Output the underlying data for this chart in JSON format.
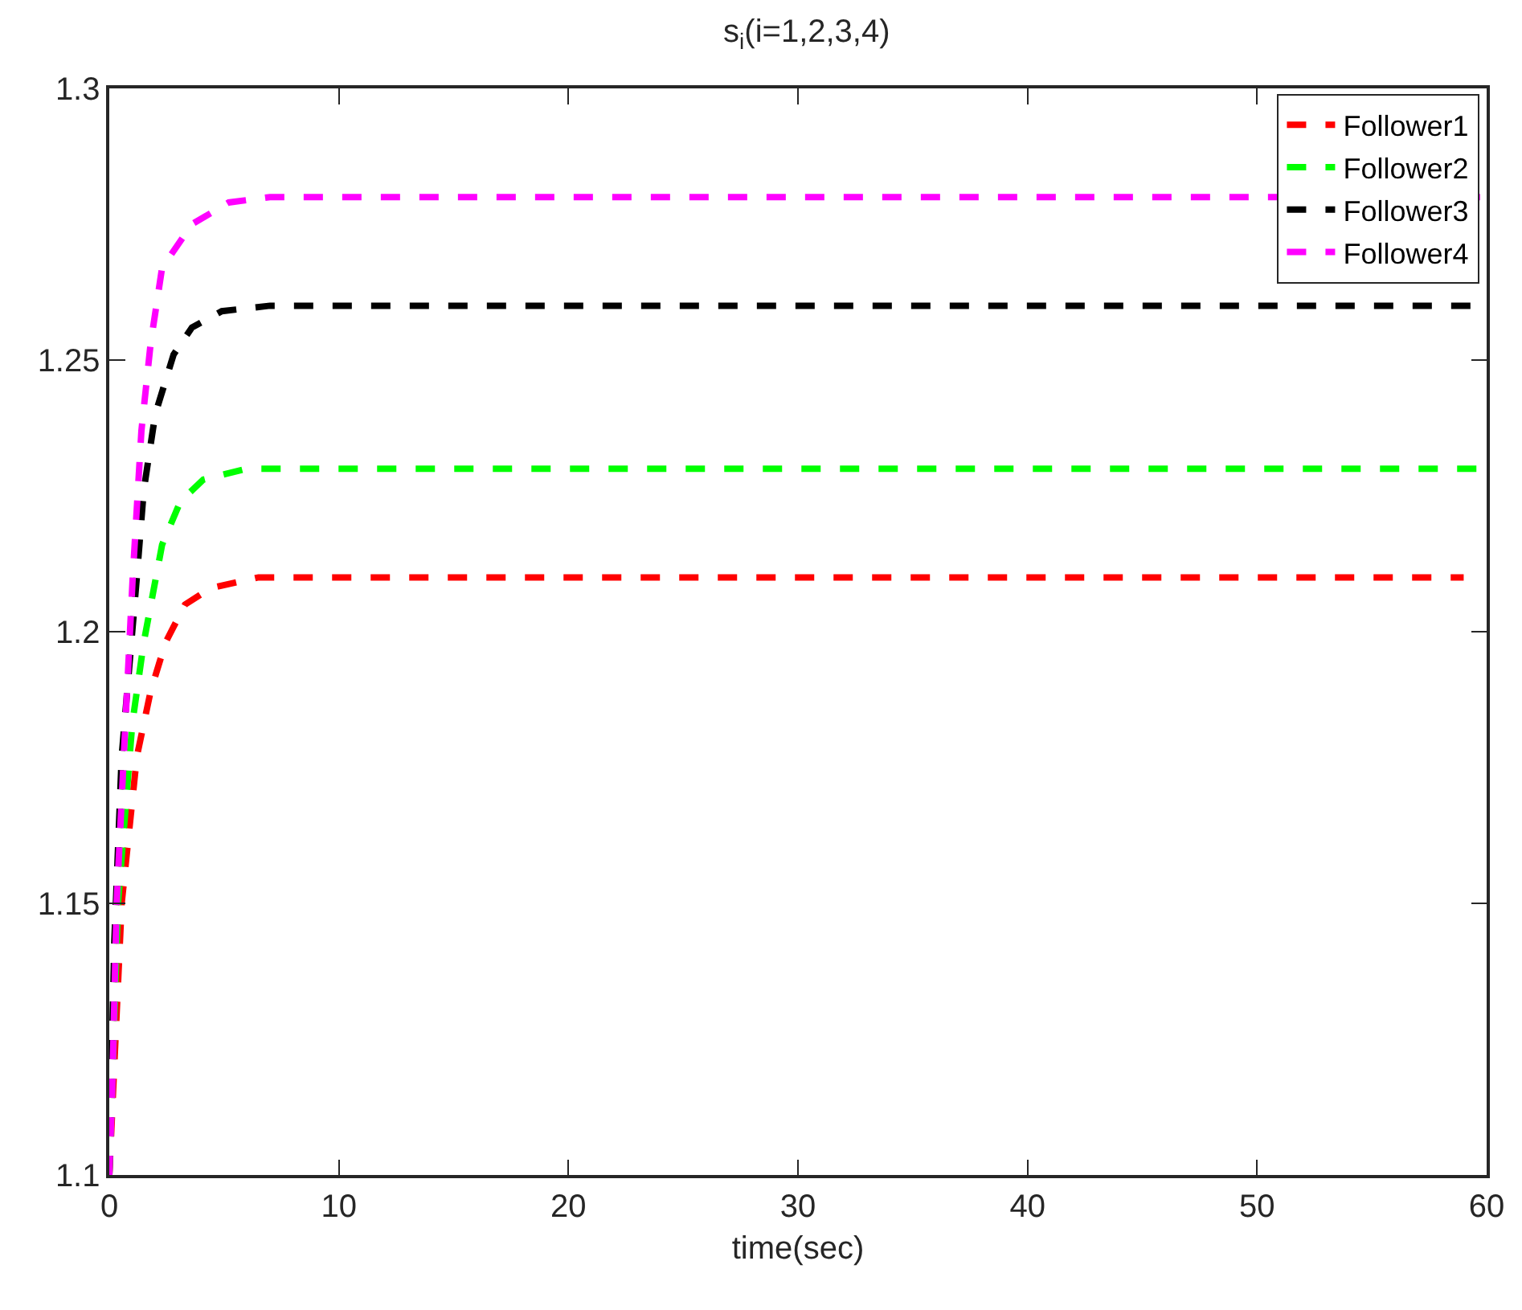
{
  "chart_data": {
    "type": "line",
    "title": "s$_{i}$(i=1,2,3,4)",
    "xlabel": "time(sec)",
    "xlim": [
      0,
      60
    ],
    "xticks": [
      0,
      10,
      20,
      30,
      40,
      50,
      60
    ],
    "ylim": [
      1.1,
      1.3
    ],
    "yticks": [
      1.1,
      1.15,
      1.2,
      1.25,
      1.3
    ],
    "grid": false,
    "legend": "top right",
    "line_style": "dashed",
    "marker": "none",
    "series": [
      {
        "name": "Follower1",
        "color": "#ff0000",
        "x": [
          0,
          0.54,
          1.2,
          1.8,
          2.45,
          3.3,
          4.4,
          6.5,
          59
        ],
        "values": [
          1.1,
          1.15,
          1.177,
          1.189,
          1.198,
          1.205,
          1.208,
          1.21,
          1.21
        ]
      },
      {
        "name": "Follower2",
        "color": "#00ff00",
        "x": [
          0,
          0.38,
          1.0,
          1.5,
          2.3,
          3.1,
          4.1,
          6,
          60
        ],
        "values": [
          1.1,
          1.15,
          1.183,
          1.198,
          1.216,
          1.224,
          1.228,
          1.23,
          1.23
        ]
      },
      {
        "name": "Follower3",
        "color": "#000000",
        "x": [
          0,
          0.22,
          0.54,
          1.2,
          1.5,
          2.0,
          2.8,
          3.6,
          4.9,
          7,
          60
        ],
        "values": [
          1.1,
          1.143,
          1.177,
          1.21,
          1.226,
          1.24,
          1.251,
          1.256,
          1.259,
          1.26,
          1.26
        ]
      },
      {
        "name": "Follower4",
        "color": "#ff00ff",
        "x": [
          0,
          0.13,
          0.32,
          0.7,
          1.02,
          1.4,
          1.8,
          2.3,
          3.6,
          5.2,
          7,
          60
        ],
        "values": [
          1.1,
          1.116,
          1.15,
          1.183,
          1.21,
          1.237,
          1.253,
          1.267,
          1.275,
          1.279,
          1.28,
          1.28
        ]
      }
    ]
  }
}
